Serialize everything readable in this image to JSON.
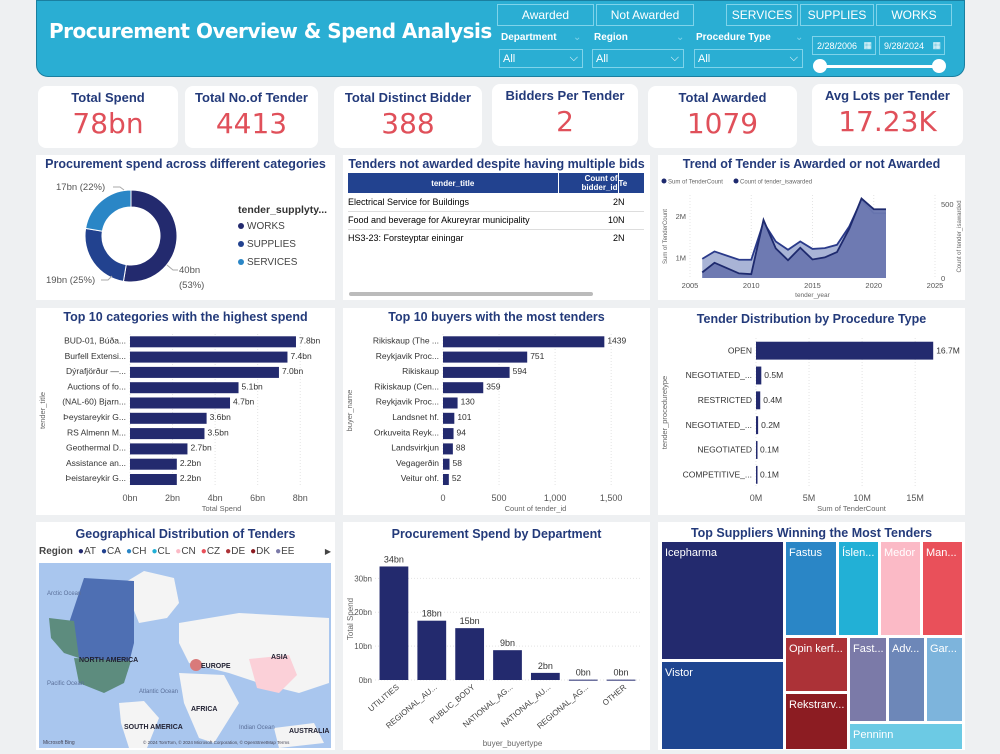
{
  "header": {
    "title": "Procurement Overview & Spend Analysis",
    "award_buttons": [
      "Awarded",
      "Not Awarded"
    ],
    "supply_buttons": [
      "SERVICES",
      "SUPPLIES",
      "WORKS"
    ],
    "filters": [
      {
        "label": "Department",
        "value": "All"
      },
      {
        "label": "Region",
        "value": "All"
      },
      {
        "label": "Procedure Type",
        "value": "All"
      }
    ],
    "date_start": "2/28/2006",
    "date_end": "9/28/2024",
    "accent": "#2aaed3"
  },
  "kpis": [
    {
      "label": "Total Spend",
      "value": "78bn"
    },
    {
      "label": "Total No.of Tender",
      "value": "4413"
    },
    {
      "label": "Total Distinct Bidder",
      "value": "388"
    },
    {
      "label": "Bidders Per Tender",
      "value": "2"
    },
    {
      "label": "Total Awarded",
      "value": "1079"
    },
    {
      "label": "Avg Lots per Tender",
      "value": "17.23K"
    }
  ],
  "table": {
    "title": "Tenders not awarded despite having multiple bids",
    "columns": [
      "tender_title",
      "Count of bidder_id",
      "Te"
    ],
    "rows": [
      [
        "Electrical Service for Buildings",
        "2",
        "N"
      ],
      [
        "Food and beverage for Akureyrar municipality",
        "10",
        "N"
      ],
      [
        "HS3-23: Forsteyptar einingar",
        "2",
        "N"
      ]
    ]
  },
  "chart_data": [
    {
      "id": "donut",
      "type": "pie",
      "title": "Procurement spend across different categories",
      "legend_title": "tender_supplyty...",
      "legend_position": "right",
      "categories": [
        "WORKS",
        "SUPPLIES",
        "SERVICES"
      ],
      "values": [
        40,
        19,
        17
      ],
      "labels": [
        "40bn",
        "19bn (25%)",
        "17bn (22%)"
      ],
      "label_pct": "(53%)",
      "colors": [
        "#232a6e",
        "#22428f",
        "#2a86c6"
      ]
    },
    {
      "id": "trend",
      "type": "area",
      "title": "Trend of Tender is Awarded or not Awarded",
      "xlabel": "tender_year",
      "ylabel": "Sum of TenderCount",
      "y2label": "Count of tender_isawarded",
      "x": [
        2006,
        2007,
        2008,
        2009,
        2010,
        2011,
        2012,
        2013,
        2014,
        2015,
        2016,
        2017,
        2018,
        2019,
        2020,
        2021
      ],
      "series": [
        {
          "name": "Sum of TenderCount",
          "axis": "left",
          "values": [
            0.96,
            1.14,
            1.04,
            0.94,
            0.94,
            1.84,
            1.38,
            1.18,
            1.38,
            1.2,
            1.22,
            1.3,
            1.74,
            2.38,
            2.06,
            2.06
          ],
          "color": "#a9b4d6"
        },
        {
          "name": "Count of tender_isawarded",
          "axis": "right",
          "values": [
            38,
            103,
            67,
            31,
            26,
            392,
            200,
            120,
            204,
            125,
            139,
            175,
            332,
            536,
            464,
            464
          ],
          "color": "#6a77b0"
        }
      ],
      "xlim": [
        2005,
        2025
      ],
      "xticks": [
        "2005",
        "2010",
        "2015",
        "2020",
        "2025"
      ],
      "ylim": [
        0.5,
        2.5
      ],
      "yticks": [
        "1M",
        "2M"
      ],
      "y2lim": [
        0,
        560
      ],
      "y2ticks": [
        "0",
        "500"
      ]
    },
    {
      "id": "cats",
      "type": "bar",
      "orientation": "horizontal",
      "title": "Top 10 categories with the highest spend",
      "xlabel": "Total Spend",
      "ylabel": "tender_title",
      "categories": [
        "BUD-01, Búða...",
        "Burfell Extensi...",
        "Dýrafjörður —...",
        "Auctions of fo...",
        "(NAL-60) Bjarn...",
        "Þeystareykir G...",
        "RS Almenn M...",
        "Geothermal D...",
        "Assistance an...",
        "Þeistareykir G..."
      ],
      "values": [
        7.8,
        7.4,
        7.0,
        5.1,
        4.7,
        3.6,
        3.5,
        2.7,
        2.2,
        2.2
      ],
      "labels": [
        "7.8bn",
        "7.4bn",
        "7.0bn",
        "5.1bn",
        "4.7bn",
        "3.6bn",
        "3.5bn",
        "2.7bn",
        "2.2bn",
        "2.2bn"
      ],
      "xlim": [
        0,
        8.6
      ],
      "ticks": [
        0,
        2,
        4,
        6,
        8
      ],
      "tick_labels": [
        "0bn",
        "2bn",
        "4bn",
        "6bn",
        "8bn"
      ],
      "color": "#232a6e"
    },
    {
      "id": "buyers",
      "type": "bar",
      "orientation": "horizontal",
      "title": "Top 10 buyers with the most tenders",
      "xlabel": "Count of tender_id",
      "ylabel": "buyer_name",
      "categories": [
        "Rikiskaup (The ...",
        "Reykjavik Proc...",
        "Rikiskaup",
        "Rikiskaup (Cen...",
        "Reykjavik Proc...",
        "Landsnet hf.",
        "Orkuveita Reyk...",
        "Landsvirkjun",
        "Vegagerðin",
        "Veitur ohf."
      ],
      "values": [
        1439,
        751,
        594,
        359,
        130,
        101,
        94,
        88,
        58,
        52
      ],
      "labels": [
        "1439",
        "751",
        "594",
        "359",
        "130",
        "101",
        "94",
        "88",
        "58",
        "52"
      ],
      "xlim": [
        0,
        1650
      ],
      "ticks": [
        0,
        500,
        1000,
        1500
      ],
      "tick_labels": [
        "0",
        "500",
        "1,000",
        "1,500"
      ],
      "color": "#232a6e"
    },
    {
      "id": "proc",
      "type": "bar",
      "orientation": "horizontal",
      "title": "Tender Distribution by Procedure Type",
      "xlabel": "Sum of TenderCount",
      "ylabel": "tender_proceduretype",
      "categories": [
        "OPEN",
        "NEGOTIATED_...",
        "RESTRICTED",
        "NEGOTIATED_...",
        "NEGOTIATED",
        "COMPETITIVE_..."
      ],
      "values": [
        16.7,
        0.5,
        0.4,
        0.2,
        0.1,
        0.1
      ],
      "labels": [
        "16.7M",
        "0.5M",
        "0.4M",
        "0.2M",
        "0.1M",
        "0.1M"
      ],
      "xlim": [
        0,
        18
      ],
      "ticks": [
        0,
        5,
        10,
        15
      ],
      "tick_labels": [
        "0M",
        "5M",
        "10M",
        "15M"
      ],
      "color": "#232a6e"
    },
    {
      "id": "dept",
      "type": "bar",
      "orientation": "vertical",
      "title": "Procurement Spend by Department",
      "xlabel": "buyer_buyertype",
      "ylabel": "Total Spend",
      "categories": [
        "UTILITIES",
        "REGIONAL_AU...",
        "PUBLIC_BODY",
        "NATIONAL_AG...",
        "NATIONAL_AU...",
        "REGIONAL_AG...",
        "OTHER"
      ],
      "values": [
        33.5,
        17.5,
        15.3,
        8.8,
        2.1,
        0.1,
        0.1
      ],
      "labels": [
        "34bn",
        "18bn",
        "15bn",
        "9bn",
        "2bn",
        "0bn",
        "0bn"
      ],
      "ylim": [
        0,
        36
      ],
      "ticks": [
        0,
        10,
        20,
        30
      ],
      "tick_labels": [
        "0bn",
        "10bn",
        "20bn",
        "30bn"
      ],
      "color": "#232a6e"
    }
  ],
  "map": {
    "title": "Geographical Distribution of Tenders",
    "legend_title": "Region",
    "legend": [
      {
        "code": "AT",
        "color": "#232a6e"
      },
      {
        "code": "CA",
        "color": "#22428f"
      },
      {
        "code": "CH",
        "color": "#2a86c6"
      },
      {
        "code": "CL",
        "color": "#22b0d6"
      },
      {
        "code": "CN",
        "color": "#fbbac6"
      },
      {
        "code": "CZ",
        "color": "#e9505a"
      },
      {
        "code": "DE",
        "color": "#ac3237"
      },
      {
        "code": "DK",
        "color": "#8c1c22"
      },
      {
        "code": "EE",
        "color": "#7b7aa8"
      }
    ],
    "labels": [
      "Arctic Ocean",
      "NORTH AMERICA",
      "EUROPE",
      "ASIA",
      "Pacific Ocean",
      "Atlantic Ocean",
      "AFRICA",
      "SOUTH AMERICA",
      "Indian Ocean",
      "AUSTRALIA"
    ],
    "provider": "Microsoft Bing",
    "attribution": "© 2024 TomTom, © 2024 Microsoft Corporation, © OpenStreetMap  Terms"
  },
  "treemap": {
    "title": "Top Suppliers Winning the Most Tenders",
    "items": [
      {
        "name": "Icepharma",
        "color": "#232a6e"
      },
      {
        "name": "Vistor",
        "color": "#1e4590"
      },
      {
        "name": "Fastus",
        "color": "#2a86c6"
      },
      {
        "name": "Íslen...",
        "color": "#22b0d6"
      },
      {
        "name": "Medor",
        "color": "#fbbac6"
      },
      {
        "name": "Man...",
        "color": "#e9505a"
      },
      {
        "name": "Opin kerf...",
        "color": "#ac3237"
      },
      {
        "name": "Rekstrarv...",
        "color": "#8c1c22"
      },
      {
        "name": "Fast...",
        "color": "#7b7aa8"
      },
      {
        "name": "Adv...",
        "color": "#6d87b8"
      },
      {
        "name": "Gar...",
        "color": "#7db4dc"
      },
      {
        "name": "Penninn",
        "color": "#6ccae4"
      }
    ]
  }
}
